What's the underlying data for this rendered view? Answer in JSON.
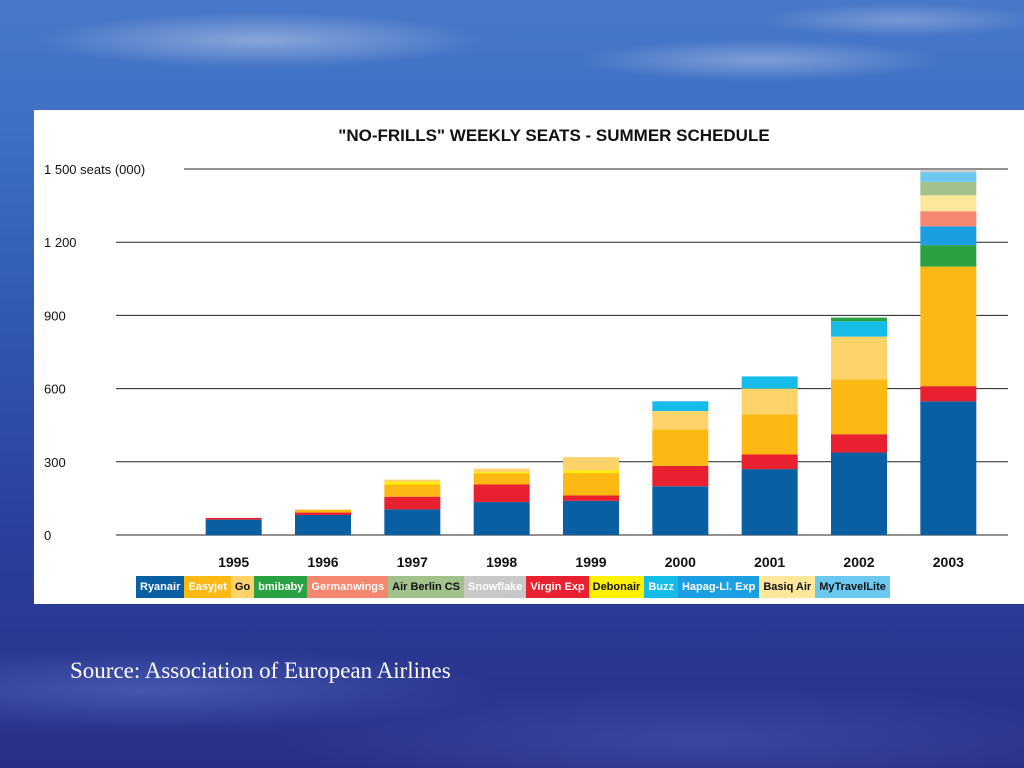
{
  "source": "Source: Association of European Airlines",
  "chart_data": {
    "type": "bar",
    "stacked": true,
    "title": "\"NO-FRILLS\" WEEKLY SEATS - SUMMER SCHEDULE",
    "ylabel": "seats (000)",
    "ylim": [
      0,
      1500
    ],
    "yticks": [
      {
        "value": 1500,
        "label": "1 500 seats (000)"
      },
      {
        "value": 1200,
        "label": "1 200"
      },
      {
        "value": 900,
        "label": "900"
      },
      {
        "value": 600,
        "label": "600"
      },
      {
        "value": 300,
        "label": "300"
      },
      {
        "value": 0,
        "label": "0"
      }
    ],
    "grid": true,
    "legend_position": "bottom",
    "categories": [
      "1995",
      "1996",
      "1997",
      "1998",
      "1999",
      "2000",
      "2001",
      "2002",
      "2003"
    ],
    "series": [
      {
        "name": "Ryanair",
        "color": "#0a5fa3",
        "text_color": "#ffffff",
        "values": [
          63,
          82,
          105,
          135,
          140,
          200,
          270,
          338,
          548
        ]
      },
      {
        "name": "Virgin Exp",
        "color": "#e8202f",
        "text_color": "#ffffff",
        "values": [
          7,
          10,
          52,
          72,
          22,
          83,
          60,
          75,
          62
        ]
      },
      {
        "name": "Easyjet",
        "color": "#fdb913",
        "text_color": "#ffffff",
        "values": [
          0,
          12,
          50,
          45,
          92,
          150,
          165,
          225,
          490
        ]
      },
      {
        "name": "Debonair",
        "color": "#fff200",
        "text_color": "#111111",
        "values": [
          0,
          0,
          10,
          5,
          10,
          0,
          0,
          0,
          0
        ]
      },
      {
        "name": "Go",
        "color": "#fdd36a",
        "text_color": "#111111",
        "values": [
          0,
          0,
          10,
          15,
          55,
          75,
          105,
          175,
          0
        ]
      },
      {
        "name": "Buzz",
        "color": "#16bce8",
        "text_color": "#ffffff",
        "values": [
          0,
          0,
          0,
          0,
          0,
          40,
          50,
          63,
          0
        ]
      },
      {
        "name": "bmibaby",
        "color": "#2aa142",
        "text_color": "#ffffff",
        "values": [
          0,
          0,
          0,
          0,
          0,
          0,
          0,
          15,
          88
        ]
      },
      {
        "name": "Hapag-Ll. Exp",
        "color": "#1b9fe3",
        "text_color": "#ffffff",
        "values": [
          0,
          0,
          0,
          0,
          0,
          0,
          0,
          0,
          77
        ]
      },
      {
        "name": "Germanwings",
        "color": "#f5866f",
        "text_color": "#ffffff",
        "values": [
          0,
          0,
          0,
          0,
          0,
          0,
          0,
          0,
          62
        ]
      },
      {
        "name": "Basiq Air",
        "color": "#fde79b",
        "text_color": "#111111",
        "values": [
          0,
          0,
          0,
          0,
          0,
          0,
          0,
          0,
          65
        ]
      },
      {
        "name": "Air Berlin CS",
        "color": "#a2c18b",
        "text_color": "#111111",
        "values": [
          0,
          0,
          0,
          0,
          0,
          0,
          0,
          0,
          55
        ]
      },
      {
        "name": "MyTravelLite",
        "color": "#6cc8ef",
        "text_color": "#111111",
        "values": [
          0,
          0,
          0,
          0,
          0,
          0,
          0,
          0,
          40
        ]
      },
      {
        "name": "Snowflake",
        "color": "#c8c8c8",
        "text_color": "#ffffff",
        "values": [
          0,
          0,
          0,
          0,
          0,
          0,
          0,
          0,
          8
        ]
      }
    ],
    "legend_order": [
      "Ryanair",
      "Easyjet",
      "Go",
      "bmibaby",
      "Germanwings",
      "Air Berlin CS",
      "Snowflake",
      "Virgin Exp",
      "Debonair",
      "Buzz",
      "Hapag-Ll. Exp",
      "Basiq Air",
      "MyTravelLite"
    ]
  }
}
